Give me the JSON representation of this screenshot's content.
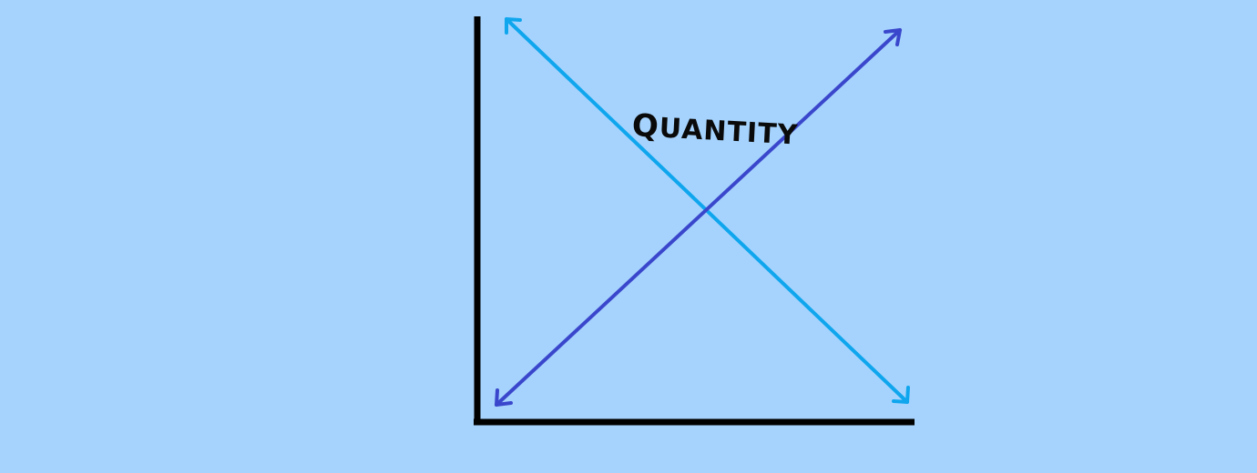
{
  "diagram": {
    "label": "Quantity",
    "colors": {
      "background": "#a6d3fd",
      "axes": "#000000",
      "line_down": "#0fa6ee",
      "line_up": "#3a47cc"
    }
  }
}
